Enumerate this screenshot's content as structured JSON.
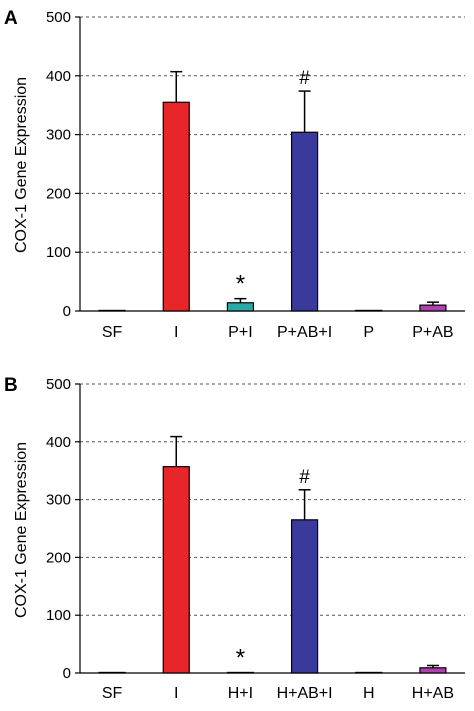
{
  "chart_data": [
    {
      "type": "bar",
      "panel_label": "A",
      "ylabel": "COX-1 Gene Expression",
      "xlabel": "",
      "ylim": [
        0,
        500
      ],
      "yticks": [
        0,
        100,
        200,
        300,
        400,
        500
      ],
      "grid": true,
      "legend": "none",
      "categories": [
        "SF",
        "I",
        "P+I",
        "P+AB+I",
        "P",
        "P+AB"
      ],
      "values": [
        1,
        355,
        14,
        304,
        1,
        10
      ],
      "errors": [
        0,
        52,
        7,
        70,
        0,
        5
      ],
      "annotations": [
        "",
        "",
        "*",
        "#",
        "",
        ""
      ],
      "colors": [
        "#808080",
        "#e8262a",
        "#2aaaa6",
        "#3a3a9c",
        "#808080",
        "#b040b0"
      ]
    },
    {
      "type": "bar",
      "panel_label": "B",
      "ylabel": "COX-1 Gene Expression",
      "xlabel": "",
      "ylim": [
        0,
        500
      ],
      "yticks": [
        0,
        100,
        200,
        300,
        400,
        500
      ],
      "grid": true,
      "legend": "none",
      "categories": [
        "SF",
        "I",
        "H+I",
        "H+AB+I",
        "H",
        "H+AB"
      ],
      "values": [
        1,
        357,
        1,
        265,
        1,
        9
      ],
      "errors": [
        0,
        52,
        0,
        52,
        0,
        4
      ],
      "annotations": [
        "",
        "",
        "*",
        "#",
        "",
        ""
      ],
      "colors": [
        "#808080",
        "#e8262a",
        "#808080",
        "#3a3a9c",
        "#808080",
        "#b040b0"
      ]
    }
  ]
}
